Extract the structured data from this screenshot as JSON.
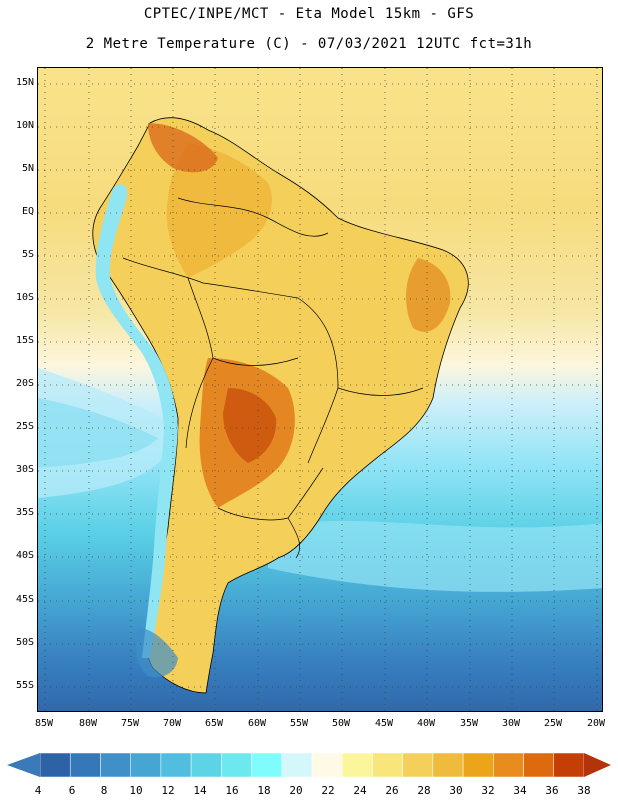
{
  "header": {
    "line1": "CPTEC/INPE/MCT -  Eta Model 15km - GFS",
    "line2": "2 Metre Temperature (C) - 07/03/2021 12UTC fct=31h"
  },
  "map": {
    "lat_labels": [
      "15N",
      "10N",
      "5N",
      "EQ",
      "5S",
      "10S",
      "15S",
      "20S",
      "25S",
      "30S",
      "35S",
      "40S",
      "45S",
      "50S",
      "55S"
    ],
    "lon_labels": [
      "85W",
      "80W",
      "75W",
      "70W",
      "65W",
      "60W",
      "55W",
      "50W",
      "45W",
      "40W",
      "35W",
      "30W",
      "25W",
      "20W"
    ],
    "gridlines": "dotted"
  },
  "legend": {
    "labels": [
      "4",
      "6",
      "8",
      "10",
      "12",
      "14",
      "16",
      "18",
      "20",
      "22",
      "24",
      "26",
      "28",
      "30",
      "32",
      "34",
      "36",
      "38"
    ],
    "colors": [
      "#2d63a6",
      "#3478b9",
      "#3f8fc8",
      "#46a6d3",
      "#52bedf",
      "#5dd3e6",
      "#6be9ee",
      "#7ffcfc",
      "#d4f7fb",
      "#fffae6",
      "#fbf59b",
      "#f8e67a",
      "#f4d05b",
      "#efbb3c",
      "#eca419",
      "#e78c1d",
      "#dd6b0e",
      "#c43e05"
    ],
    "low_arrow_color": "#3a7ab8",
    "high_arrow_color": "#b5330a"
  }
}
